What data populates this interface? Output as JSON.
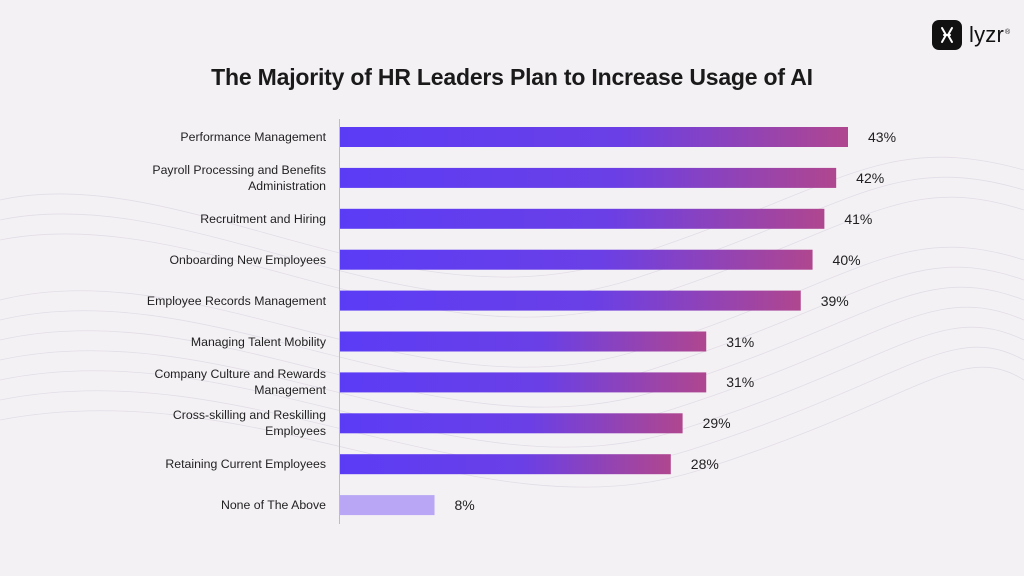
{
  "brand": {
    "name": "lyzr",
    "trademark": "®",
    "logo_icon": "lyzr-logo-icon"
  },
  "colors": {
    "bar_start": "#5b3cf5",
    "bar_end": "#b0468f",
    "bar_muted": "#b9a6f4",
    "background": "#f4f1f5"
  },
  "chart_data": {
    "type": "bar",
    "orientation": "horizontal",
    "title": "The Majority of HR Leaders Plan to Increase Usage of AI",
    "categories": [
      "Performance Management",
      "Payroll Processing and Benefits Administration",
      "Recruitment and Hiring",
      "Onboarding New Employees",
      "Employee Records Management",
      "Managing Talent Mobility",
      "Company Culture and Rewards Management",
      "Cross-skilling and Reskilling Employees",
      "Retaining Current Employees",
      "None of The Above"
    ],
    "values": [
      43,
      42,
      41,
      40,
      39,
      31,
      31,
      29,
      28,
      8
    ],
    "value_labels": [
      "43%",
      "42%",
      "41%",
      "40%",
      "39%",
      "31%",
      "31%",
      "29%",
      "28%",
      "8%"
    ],
    "unit": "%",
    "xlim": [
      0,
      43
    ],
    "xlabel": "",
    "ylabel": "",
    "grid": false,
    "legend": "none"
  }
}
